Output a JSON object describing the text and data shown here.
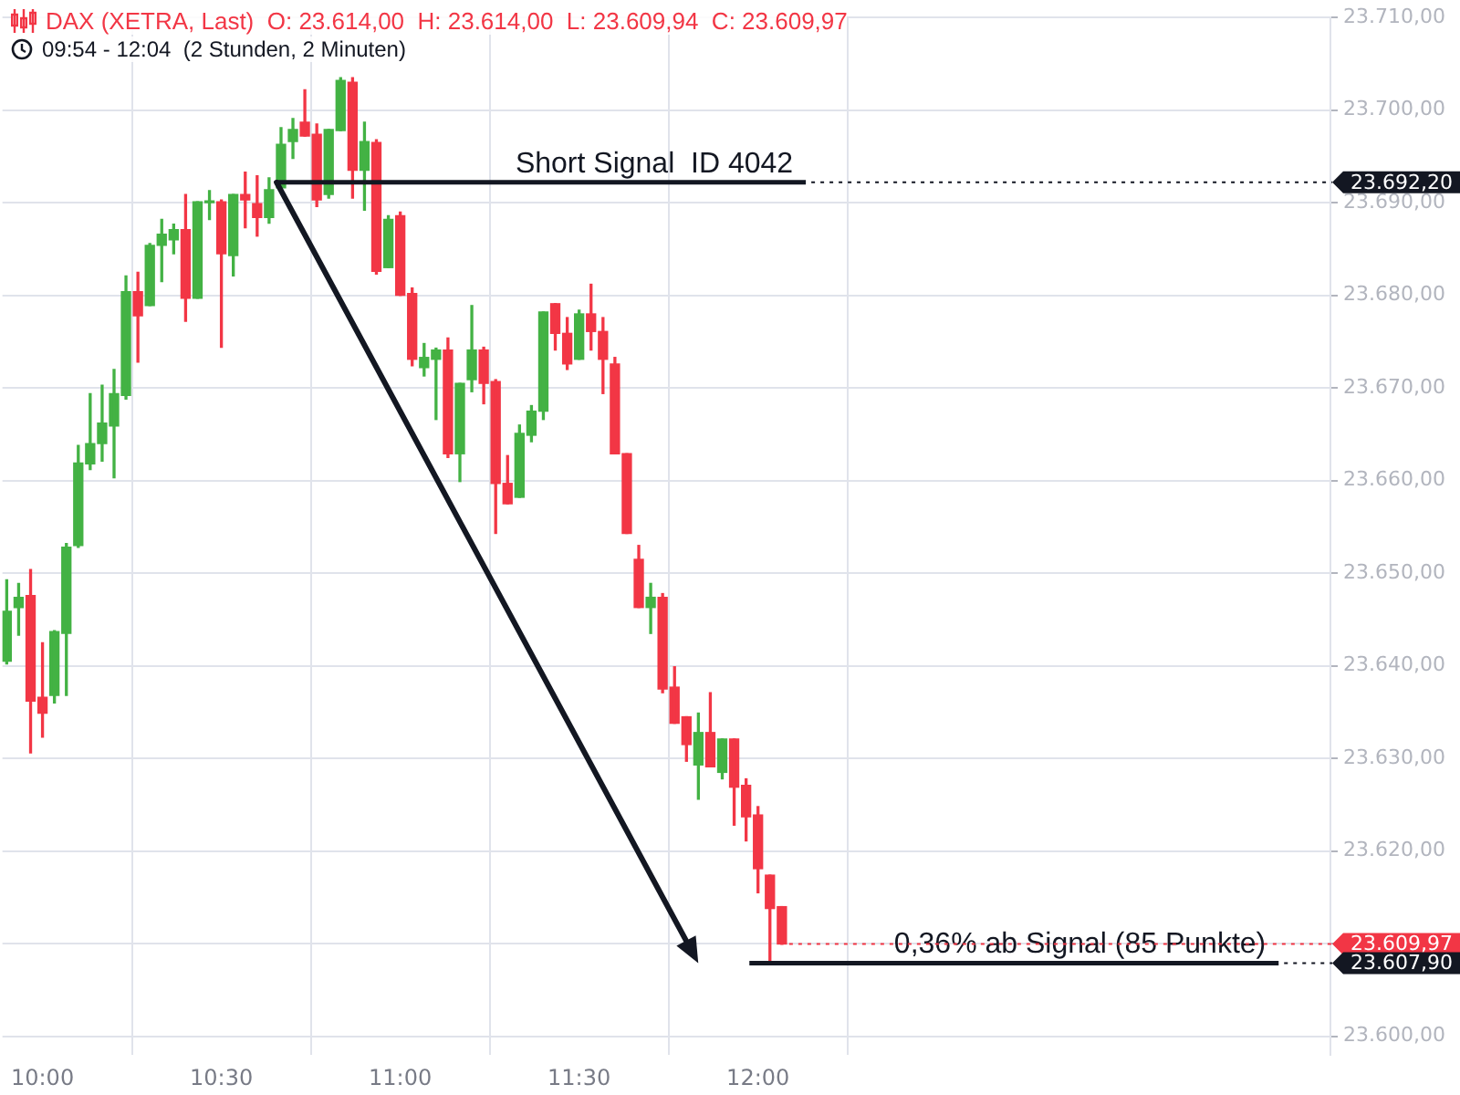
{
  "chart_data": {
    "type": "candlestick",
    "title": "DAX (XETRA, Last)  O: 23.614,00  H: 23.614,00  L: 23.609,94  C: 23.609,97",
    "subtitle": "09:54 - 12:04  (2 Stunden, 2 Minuten)",
    "x": [
      9.9,
      9.9333,
      9.9667,
      10,
      10.0333,
      10.0667,
      10.1,
      10.1333,
      10.1667,
      10.2,
      10.2333,
      10.2667,
      10.3,
      10.3333,
      10.3667,
      10.4,
      10.4333,
      10.4667,
      10.5,
      10.5333,
      10.5667,
      10.6,
      10.6333,
      10.6667,
      10.7,
      10.7333,
      10.7667,
      10.8,
      10.8333,
      10.8667,
      10.9,
      10.9333,
      10.9667,
      11,
      11.0333,
      11.0667,
      11.1,
      11.1333,
      11.1667,
      11.2,
      11.2333,
      11.2667,
      11.3,
      11.3333,
      11.3667,
      11.4,
      11.4333,
      11.4667,
      11.5,
      11.5333,
      11.5667,
      11.6,
      11.6333,
      11.6667,
      11.7,
      11.7333,
      11.7667,
      11.8,
      11.8333,
      11.8667,
      11.9,
      11.9333,
      11.9667,
      12,
      12.0333,
      12.0667
    ],
    "ohlc": [
      [
        23640.5,
        23649.3,
        23640.2,
        23645.9
      ],
      [
        23646.3,
        23648.9,
        23643.3,
        23647.4
      ],
      [
        23647.6,
        23650.4,
        23630.6,
        23636.2
      ],
      [
        23636.6,
        23642.5,
        23632.3,
        23634.9
      ],
      [
        23636.8,
        23643.8,
        23636.0,
        23643.7
      ],
      [
        23643.5,
        23653.2,
        23636.8,
        23652.8
      ],
      [
        23653.0,
        23663.8,
        23652.8,
        23661.9
      ],
      [
        23661.8,
        23669.4,
        23661.2,
        23664.0
      ],
      [
        23664.0,
        23670.3,
        23662.1,
        23666.2
      ],
      [
        23665.9,
        23672.0,
        23660.3,
        23669.4
      ],
      [
        23669.2,
        23682.1,
        23668.8,
        23680.4
      ],
      [
        23680.4,
        23682.5,
        23672.8,
        23677.8
      ],
      [
        23678.9,
        23685.6,
        23678.9,
        23685.4
      ],
      [
        23685.4,
        23688.2,
        23681.5,
        23686.6
      ],
      [
        23686.0,
        23687.7,
        23684.5,
        23687.1
      ],
      [
        23687.1,
        23690.9,
        23677.2,
        23679.7
      ],
      [
        23679.7,
        23690.1,
        23679.7,
        23690.1
      ],
      [
        23690.0,
        23691.3,
        23688.2,
        23690.1
      ],
      [
        23690.1,
        23690.3,
        23674.4,
        23684.5
      ],
      [
        23684.3,
        23690.9,
        23682.1,
        23690.9
      ],
      [
        23690.9,
        23693.3,
        23687.3,
        23690.3
      ],
      [
        23689.9,
        23692.9,
        23686.4,
        23688.4
      ],
      [
        23688.4,
        23692.7,
        23687.8,
        23691.4
      ],
      [
        23691.6,
        23698.1,
        23691.4,
        23696.3
      ],
      [
        23696.6,
        23699.1,
        23694.8,
        23697.9
      ],
      [
        23698.7,
        23702.2,
        23697.2,
        23697.2
      ],
      [
        23697.4,
        23698.5,
        23689.6,
        23690.3
      ],
      [
        23690.9,
        23697.9,
        23690.5,
        23697.9
      ],
      [
        23697.8,
        23703.5,
        23697.8,
        23703.2
      ],
      [
        23703.0,
        23703.5,
        23690.5,
        23693.5
      ],
      [
        23693.5,
        23698.7,
        23689.2,
        23696.6
      ],
      [
        23696.5,
        23696.8,
        23682.3,
        23682.6
      ],
      [
        23683.0,
        23688.6,
        23683.0,
        23688.2
      ],
      [
        23688.6,
        23689.0,
        23680.0,
        23680.0
      ],
      [
        23680.2,
        23680.8,
        23672.4,
        23673.1
      ],
      [
        23672.2,
        23674.8,
        23671.3,
        23673.3
      ],
      [
        23673.1,
        23674.3,
        23666.6,
        23674.1
      ],
      [
        23674.1,
        23675.4,
        23662.5,
        23662.9
      ],
      [
        23662.9,
        23670.5,
        23659.9,
        23670.5
      ],
      [
        23670.9,
        23678.9,
        23669.6,
        23674.1
      ],
      [
        23674.1,
        23674.4,
        23668.3,
        23670.5
      ],
      [
        23670.7,
        23670.9,
        23654.3,
        23659.7
      ],
      [
        23659.7,
        23662.7,
        23657.5,
        23657.5
      ],
      [
        23658.2,
        23666.0,
        23658.2,
        23665.1
      ],
      [
        23664.9,
        23668.1,
        23664.2,
        23667.5
      ],
      [
        23667.5,
        23678.2,
        23666.6,
        23678.2
      ],
      [
        23679.1,
        23679.1,
        23674.1,
        23675.9
      ],
      [
        23675.9,
        23677.6,
        23672.0,
        23672.6
      ],
      [
        23673.1,
        23678.4,
        23673.1,
        23678.0
      ],
      [
        23678.0,
        23681.2,
        23674.1,
        23676.1
      ],
      [
        23676.1,
        23677.6,
        23669.4,
        23673.1
      ],
      [
        23672.6,
        23673.3,
        23662.9,
        23662.9
      ],
      [
        23662.9,
        23662.9,
        23654.3,
        23654.3
      ],
      [
        23651.5,
        23653.0,
        23646.3,
        23646.3
      ],
      [
        23646.3,
        23648.9,
        23643.5,
        23647.4
      ],
      [
        23647.4,
        23647.8,
        23637.1,
        23637.5
      ],
      [
        23637.7,
        23639.9,
        23633.8,
        23633.8
      ],
      [
        23634.5,
        23634.5,
        23629.7,
        23631.5
      ],
      [
        23629.3,
        23634.9,
        23625.6,
        23632.8
      ],
      [
        23632.8,
        23637.1,
        23629.1,
        23629.1
      ],
      [
        23628.5,
        23632.1,
        23627.8,
        23632.1
      ],
      [
        23632.1,
        23632.1,
        23622.8,
        23626.9
      ],
      [
        23627.1,
        23627.8,
        23621.1,
        23623.7
      ],
      [
        23623.9,
        23624.8,
        23615.5,
        23618.1
      ],
      [
        23617.4,
        23617.4,
        23607.9,
        23613.8
      ],
      [
        23614.0,
        23614.0,
        23609.94,
        23609.97
      ]
    ],
    "colors": [
      "#43b244",
      "#43b244",
      "#f23645",
      "#f23645",
      "#43b244",
      "#43b244",
      "#43b244",
      "#43b244",
      "#43b244",
      "#43b244",
      "#43b244",
      "#f23645",
      "#43b244",
      "#43b244",
      "#43b244",
      "#f23645",
      "#43b244",
      "#43b244",
      "#f23645",
      "#43b244",
      "#f23645",
      "#f23645",
      "#43b244",
      "#43b244",
      "#43b244",
      "#f23645",
      "#f23645",
      "#43b244",
      "#43b244",
      "#f23645",
      "#43b244",
      "#f23645",
      "#43b244",
      "#f23645",
      "#f23645",
      "#43b244",
      "#43b244",
      "#f23645",
      "#43b244",
      "#43b244",
      "#f23645",
      "#f23645",
      "#f23645",
      "#43b244",
      "#43b244",
      "#43b244",
      "#f23645",
      "#f23645",
      "#43b244",
      "#f23645",
      "#f23645",
      "#f23645",
      "#f23645",
      "#f23645",
      "#43b244",
      "#f23645",
      "#f23645",
      "#f23645",
      "#43b244",
      "#f23645",
      "#43b244",
      "#f23645",
      "#f23645",
      "#f23645",
      "#f23645",
      "#f23645"
    ],
    "xlim": [
      9.888,
      13.6
    ],
    "xticks": [
      {
        "value": 10,
        "label": "10:00"
      },
      {
        "value": 10.5,
        "label": "10:30"
      },
      {
        "value": 11,
        "label": "11:00"
      },
      {
        "value": 11.5,
        "label": "11:30"
      },
      {
        "value": 12,
        "label": "12:00"
      }
    ],
    "ylim": [
      23598,
      23710
    ],
    "yticks": [
      {
        "value": 23600,
        "label": "23.600,00"
      },
      {
        "value": 23610,
        "label": null
      },
      {
        "value": 23620,
        "label": "23.620,00"
      },
      {
        "value": 23630,
        "label": "23.630,00"
      },
      {
        "value": 23640,
        "label": "23.640,00"
      },
      {
        "value": 23650,
        "label": "23.650,00"
      },
      {
        "value": 23660,
        "label": "23.660,00"
      },
      {
        "value": 23670,
        "label": "23.670,00"
      },
      {
        "value": 23680,
        "label": "23.680,00"
      },
      {
        "value": 23690,
        "label": "23.690,00"
      },
      {
        "value": 23700,
        "label": "23.700,00"
      },
      {
        "value": 23710,
        "label": "23.710,00"
      }
    ],
    "grid": true,
    "ref_lines": [
      {
        "axis": "y",
        "value": 23692.2,
        "label": "23.692,20",
        "color": "#131722"
      },
      {
        "axis": "y",
        "value": 23609.97,
        "label": "23.609,97",
        "color": "#f23645"
      },
      {
        "axis": "y",
        "value": 23607.9,
        "label": "23.607,90",
        "color": "#131722"
      }
    ],
    "annotations": [
      {
        "text": "Short Signal  ID 4042",
        "x": 11.71,
        "y": 23692.2
      },
      {
        "text": "0,36% ab Signal (85 Punkte)",
        "x": 12.9,
        "y": 23607.9
      }
    ]
  }
}
